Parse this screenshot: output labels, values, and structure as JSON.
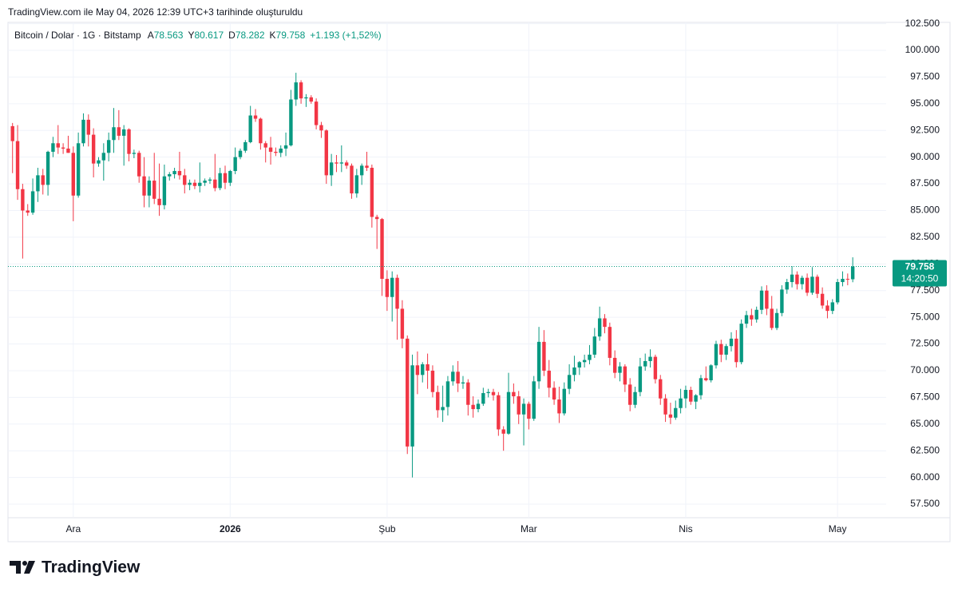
{
  "chart_data": {
    "type": "candlestick",
    "caption": "TradingView.com ile May 04, 2026 12:39 UTC+3 tarihinde oluşturuldu",
    "title": "Bitcoin / Dolar · 1G · Bitstamp",
    "legend": {
      "items": [
        {
          "key": "A",
          "text": "78.563"
        },
        {
          "key": "Y",
          "text": "80.617"
        },
        {
          "key": "D",
          "text": "78.282"
        },
        {
          "key": "K",
          "text": "79.758"
        }
      ],
      "change": "+1.193 (+1,52%)"
    },
    "brand": "TradingView",
    "up_color": "#089981",
    "down_color": "#f23645",
    "grid": true,
    "ylim": [
      56230,
      102620
    ],
    "yticks": [
      {
        "value": 57500,
        "label": "57.500"
      },
      {
        "value": 60000,
        "label": "60.000"
      },
      {
        "value": 62500,
        "label": "62.500"
      },
      {
        "value": 65000,
        "label": "65.000"
      },
      {
        "value": 67500,
        "label": "67.500"
      },
      {
        "value": 70000,
        "label": "70.000"
      },
      {
        "value": 72500,
        "label": "72.500"
      },
      {
        "value": 75000,
        "label": "75.000"
      },
      {
        "value": 77500,
        "label": "77.500"
      },
      {
        "value": 80000,
        "label": "80.000"
      },
      {
        "value": 82500,
        "label": "82.500"
      },
      {
        "value": 85000,
        "label": "85.000"
      },
      {
        "value": 87500,
        "label": "87.500"
      },
      {
        "value": 90000,
        "label": "90.000"
      },
      {
        "value": 92500,
        "label": "92.500"
      },
      {
        "value": 95000,
        "label": "95.000"
      },
      {
        "value": 97500,
        "label": "97.500"
      },
      {
        "value": 100000,
        "label": "100.000"
      },
      {
        "value": 102500,
        "label": "102.500"
      }
    ],
    "xlim": [
      -0.9,
      172.6
    ],
    "xticks": [
      {
        "value": 12,
        "label": "Ara"
      },
      {
        "value": 43,
        "label": "2026"
      },
      {
        "value": 74,
        "label": "Şub"
      },
      {
        "value": 102,
        "label": "Mar"
      },
      {
        "value": 133,
        "label": "Nis"
      },
      {
        "value": 163,
        "label": "May"
      }
    ],
    "last_price": {
      "value": 79758,
      "label": "79.758",
      "countdown": "14:20:50"
    },
    "ohlc": [
      [
        92900,
        93200,
        88500,
        91500
      ],
      [
        91500,
        93000,
        86000,
        87000
      ],
      [
        87000,
        87500,
        80500,
        85000
      ],
      [
        85000,
        85600,
        84500,
        84800
      ],
      [
        84800,
        88000,
        84600,
        86800
      ],
      [
        86800,
        89000,
        85800,
        88300
      ],
      [
        88300,
        88900,
        86500,
        87400
      ],
      [
        87400,
        90600,
        86400,
        90500
      ],
      [
        90500,
        91900,
        90000,
        91300
      ],
      [
        91300,
        93000,
        90300,
        90900
      ],
      [
        90900,
        91300,
        90300,
        90800
      ],
      [
        90800,
        92000,
        90400,
        90400
      ],
      [
        90400,
        91000,
        84000,
        86400
      ],
      [
        86400,
        92300,
        86200,
        91300
      ],
      [
        91300,
        94100,
        91000,
        93500
      ],
      [
        93500,
        94000,
        91000,
        92100
      ],
      [
        92100,
        92700,
        88100,
        89400
      ],
      [
        89400,
        90000,
        89100,
        89700
      ],
      [
        89700,
        91300,
        87800,
        90400
      ],
      [
        90400,
        92300,
        89600,
        91600
      ],
      [
        91600,
        94600,
        90400,
        92800
      ],
      [
        92800,
        94400,
        91600,
        92000
      ],
      [
        92000,
        93000,
        89200,
        92600
      ],
      [
        92600,
        92700,
        89600,
        90300
      ],
      [
        90300,
        90700,
        89900,
        90400
      ],
      [
        90400,
        90600,
        87600,
        88200
      ],
      [
        88200,
        90000,
        85300,
        86400
      ],
      [
        86400,
        88200,
        85300,
        87800
      ],
      [
        87800,
        90400,
        85600,
        86100
      ],
      [
        86100,
        89400,
        84500,
        85500
      ],
      [
        85500,
        89300,
        85100,
        88200
      ],
      [
        88200,
        88600,
        87800,
        88400
      ],
      [
        88400,
        89000,
        88000,
        88700
      ],
      [
        88700,
        90500,
        87900,
        88300
      ],
      [
        88300,
        88900,
        86600,
        87400
      ],
      [
        87400,
        87900,
        86900,
        87600
      ],
      [
        87600,
        87900,
        87000,
        87300
      ],
      [
        87300,
        89500,
        86700,
        87600
      ],
      [
        87600,
        88000,
        87300,
        87800
      ],
      [
        87800,
        88100,
        87500,
        87900
      ],
      [
        87900,
        90300,
        86800,
        87100
      ],
      [
        87100,
        89000,
        86900,
        88500
      ],
      [
        88500,
        89200,
        87000,
        87600
      ],
      [
        87600,
        88800,
        87300,
        88700
      ],
      [
        88700,
        90900,
        88400,
        90000
      ],
      [
        90000,
        90800,
        89800,
        90600
      ],
      [
        90600,
        91600,
        90400,
        91400
      ],
      [
        91400,
        94800,
        91300,
        93900
      ],
      [
        93900,
        94500,
        93300,
        93600
      ],
      [
        93600,
        93700,
        90700,
        91300
      ],
      [
        91300,
        91500,
        89500,
        90900
      ],
      [
        90900,
        91900,
        89300,
        90500
      ],
      [
        90500,
        90900,
        90100,
        90400
      ],
      [
        90400,
        91100,
        90000,
        90800
      ],
      [
        90800,
        92300,
        90100,
        91100
      ],
      [
        91100,
        96300,
        91000,
        95400
      ],
      [
        95400,
        97900,
        94800,
        97000
      ],
      [
        97000,
        97200,
        95000,
        95500
      ],
      [
        95500,
        95900,
        94700,
        95600
      ],
      [
        95600,
        95800,
        95000,
        95200
      ],
      [
        95200,
        95500,
        92600,
        93000
      ],
      [
        93000,
        93300,
        91800,
        92500
      ],
      [
        92500,
        92600,
        87500,
        88300
      ],
      [
        88300,
        90300,
        87300,
        89500
      ],
      [
        89500,
        90200,
        88600,
        89400
      ],
      [
        89400,
        91100,
        88600,
        89500
      ],
      [
        89500,
        89700,
        88900,
        89200
      ],
      [
        89200,
        89400,
        86100,
        86600
      ],
      [
        86600,
        88900,
        86200,
        88300
      ],
      [
        88300,
        89400,
        87400,
        89200
      ],
      [
        89200,
        90500,
        88700,
        89000
      ],
      [
        89000,
        89300,
        83400,
        84400
      ],
      [
        84400,
        84600,
        81400,
        84200
      ],
      [
        84200,
        84300,
        77000,
        78600
      ],
      [
        78600,
        79400,
        75600,
        76900
      ],
      [
        76900,
        79300,
        74600,
        78700
      ],
      [
        78700,
        79000,
        72900,
        75800
      ],
      [
        75800,
        76600,
        72100,
        73000
      ],
      [
        73000,
        73300,
        62200,
        62900
      ],
      [
        62900,
        71500,
        60000,
        70500
      ],
      [
        70500,
        71800,
        67800,
        69600
      ],
      [
        69600,
        70800,
        68900,
        70600
      ],
      [
        70600,
        71600,
        68300,
        70000
      ],
      [
        70000,
        70500,
        67500,
        68000
      ],
      [
        68000,
        68600,
        65600,
        66300
      ],
      [
        66300,
        68600,
        65200,
        66600
      ],
      [
        66600,
        69500,
        65800,
        69000
      ],
      [
        69000,
        70500,
        68600,
        69900
      ],
      [
        69900,
        70900,
        68000,
        68800
      ],
      [
        68800,
        69500,
        68300,
        68900
      ],
      [
        68900,
        69200,
        65800,
        66800
      ],
      [
        66800,
        67600,
        65600,
        66400
      ],
      [
        66400,
        67300,
        66100,
        66900
      ],
      [
        66900,
        68400,
        66700,
        67900
      ],
      [
        67900,
        68300,
        67500,
        68000
      ],
      [
        68000,
        68300,
        67200,
        67700
      ],
      [
        67700,
        68000,
        63900,
        64500
      ],
      [
        64500,
        64800,
        62500,
        64100
      ],
      [
        64100,
        69800,
        64000,
        68000
      ],
      [
        68000,
        68800,
        66900,
        67600
      ],
      [
        67600,
        68100,
        65000,
        65900
      ],
      [
        65900,
        67400,
        63000,
        66900
      ],
      [
        66900,
        67100,
        64500,
        65500
      ],
      [
        65500,
        69500,
        65300,
        69000
      ],
      [
        69000,
        74100,
        68300,
        72700
      ],
      [
        72700,
        73800,
        69500,
        70000
      ],
      [
        70000,
        71000,
        67500,
        68400
      ],
      [
        68400,
        69000,
        66800,
        67300
      ],
      [
        67300,
        68500,
        65100,
        66000
      ],
      [
        66000,
        68900,
        65800,
        68300
      ],
      [
        68300,
        70600,
        67800,
        69600
      ],
      [
        69600,
        71400,
        69000,
        70300
      ],
      [
        70300,
        70900,
        69600,
        70800
      ],
      [
        70800,
        71500,
        70300,
        71000
      ],
      [
        71000,
        72400,
        70600,
        71500
      ],
      [
        71500,
        74000,
        71200,
        73200
      ],
      [
        73200,
        76000,
        72800,
        74900
      ],
      [
        74900,
        75300,
        73500,
        74100
      ],
      [
        74100,
        74500,
        70500,
        71200
      ],
      [
        71200,
        71900,
        69300,
        69800
      ],
      [
        69800,
        70800,
        69000,
        70400
      ],
      [
        70400,
        70600,
        68000,
        68700
      ],
      [
        68700,
        69300,
        66200,
        66800
      ],
      [
        66800,
        68500,
        66500,
        68000
      ],
      [
        68000,
        71200,
        67600,
        70400
      ],
      [
        70400,
        71600,
        70000,
        70900
      ],
      [
        70900,
        72000,
        70300,
        71300
      ],
      [
        71300,
        71500,
        68800,
        69200
      ],
      [
        69200,
        69600,
        66800,
        67400
      ],
      [
        67400,
        67800,
        65200,
        65900
      ],
      [
        65900,
        67000,
        65000,
        65600
      ],
      [
        65600,
        67200,
        65400,
        66500
      ],
      [
        66500,
        68300,
        66000,
        67400
      ],
      [
        67400,
        68600,
        66500,
        68200
      ],
      [
        68200,
        68500,
        66800,
        67100
      ],
      [
        67100,
        67800,
        66400,
        67700
      ],
      [
        67700,
        69600,
        67300,
        69300
      ],
      [
        69300,
        70400,
        69000,
        69100
      ],
      [
        69100,
        70600,
        68900,
        70500
      ],
      [
        70500,
        72800,
        70200,
        72500
      ],
      [
        72500,
        72900,
        70800,
        71500
      ],
      [
        71500,
        72500,
        71000,
        72300
      ],
      [
        72300,
        73600,
        71800,
        73000
      ],
      [
        73000,
        73800,
        70300,
        70800
      ],
      [
        70800,
        74800,
        70600,
        74400
      ],
      [
        74400,
        75600,
        74000,
        75200
      ],
      [
        75200,
        75800,
        74200,
        74800
      ],
      [
        74800,
        76000,
        74500,
        75700
      ],
      [
        75700,
        77900,
        75300,
        77500
      ],
      [
        77500,
        78000,
        75200,
        75800
      ],
      [
        75800,
        77000,
        73800,
        74000
      ],
      [
        74000,
        75800,
        73800,
        75400
      ],
      [
        75400,
        78000,
        75100,
        77600
      ],
      [
        77600,
        78600,
        77200,
        78300
      ],
      [
        78300,
        79800,
        77800,
        79000
      ],
      [
        79000,
        79300,
        77600,
        78100
      ],
      [
        78100,
        78900,
        77600,
        78700
      ],
      [
        78700,
        79100,
        77000,
        77300
      ],
      [
        77300,
        79700,
        77100,
        78800
      ],
      [
        78800,
        79000,
        76800,
        77200
      ],
      [
        77200,
        77800,
        75800,
        76100
      ],
      [
        76100,
        76600,
        74900,
        75600
      ],
      [
        75600,
        76700,
        75300,
        76400
      ],
      [
        76400,
        78600,
        76200,
        78300
      ],
      [
        78300,
        79300,
        77900,
        78600
      ],
      [
        78600,
        79100,
        78000,
        78563
      ],
      [
        78563,
        80617,
        78282,
        79758
      ]
    ]
  }
}
